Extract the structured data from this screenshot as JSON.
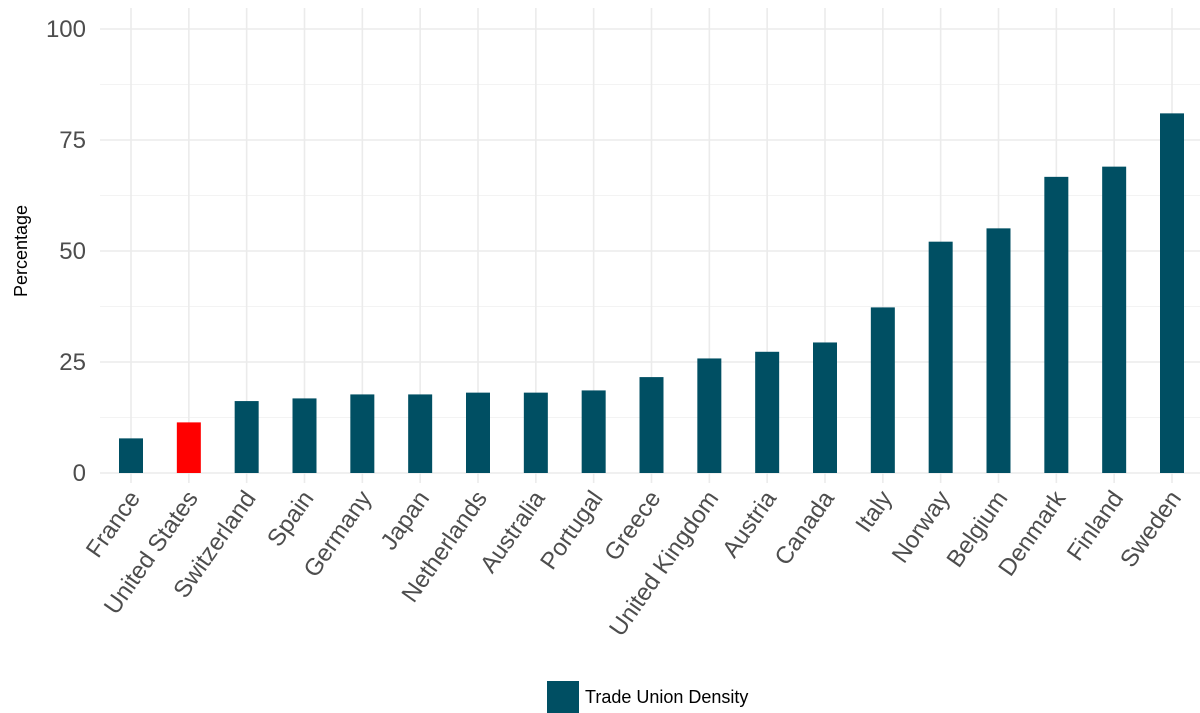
{
  "chart_data": {
    "type": "bar",
    "categories": [
      "France",
      "United States",
      "Switzerland",
      "Spain",
      "Germany",
      "Japan",
      "Netherlands",
      "Australia",
      "Portugal",
      "Greece",
      "United Kingdom",
      "Austria",
      "Canada",
      "Italy",
      "Norway",
      "Belgium",
      "Denmark",
      "Finland",
      "Sweden"
    ],
    "series": [
      {
        "name": "Trade Union Density",
        "values": [
          7.8,
          11.4,
          16.2,
          16.8,
          17.7,
          17.7,
          18.1,
          18.1,
          18.6,
          21.6,
          25.8,
          27.3,
          29.4,
          37.3,
          52.1,
          55.1,
          66.7,
          69.0,
          81.0
        ]
      }
    ],
    "highlight": {
      "category": "United States",
      "color": "#ff0000"
    },
    "bar_color": "#004f63",
    "ylabel": "Percentage",
    "xlabel": "",
    "ylim": [
      0,
      100
    ],
    "yticks": [
      0,
      25,
      50,
      75,
      100
    ],
    "grid": true,
    "legend": {
      "position": "bottom",
      "label": "Trade Union Density",
      "color": "#004f63"
    }
  }
}
